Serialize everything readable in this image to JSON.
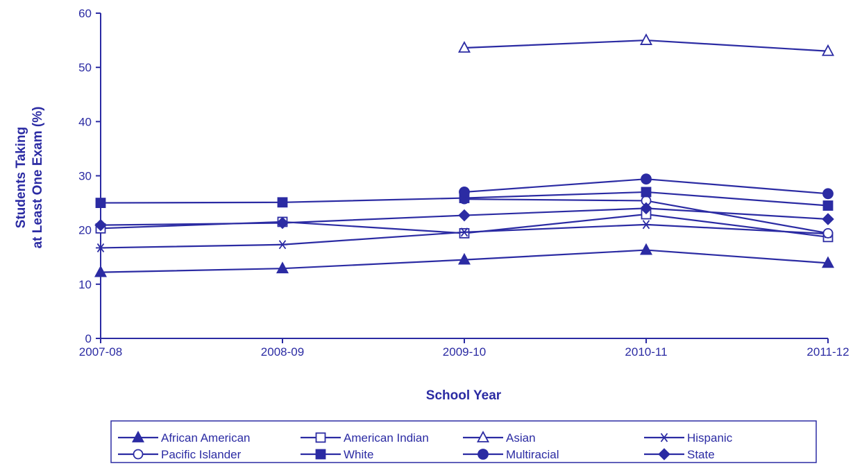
{
  "chart_data": {
    "type": "line",
    "xlabel": "School Year",
    "ylabel": [
      "Students Taking",
      "at Least One Exam (%)"
    ],
    "categories": [
      "2007-08",
      "2008-09",
      "2009-10",
      "2010-11",
      "2011-12"
    ],
    "ylim": [
      0,
      60
    ],
    "yticks": [
      0,
      10,
      20,
      30,
      40,
      50,
      60
    ],
    "grid": false,
    "legend_position": "bottom",
    "color": "#2b2ba3",
    "series": [
      {
        "name": "African American",
        "marker": "triangle-filled",
        "values": [
          12.2,
          12.9,
          14.5,
          16.3,
          13.9
        ]
      },
      {
        "name": "American Indian",
        "marker": "square-open",
        "values": [
          20.3,
          21.5,
          19.4,
          22.9,
          18.7
        ]
      },
      {
        "name": "Asian",
        "marker": "triangle-open",
        "values": [
          null,
          null,
          53.6,
          55.0,
          53.0
        ]
      },
      {
        "name": "Hispanic",
        "marker": "asterisk",
        "values": [
          16.7,
          17.3,
          19.6,
          21.0,
          19.3
        ]
      },
      {
        "name": "Pacific Islander",
        "marker": "circle-open",
        "values": [
          null,
          null,
          25.7,
          25.4,
          19.4
        ]
      },
      {
        "name": "White",
        "marker": "square-filled",
        "values": [
          25.0,
          25.1,
          25.9,
          27.0,
          24.5
        ]
      },
      {
        "name": "Multiracial",
        "marker": "circle-filled",
        "values": [
          null,
          null,
          27.0,
          29.4,
          26.7
        ]
      },
      {
        "name": "State",
        "marker": "diamond-filled",
        "values": [
          20.9,
          21.3,
          22.7,
          24.0,
          22.0
        ]
      }
    ]
  }
}
